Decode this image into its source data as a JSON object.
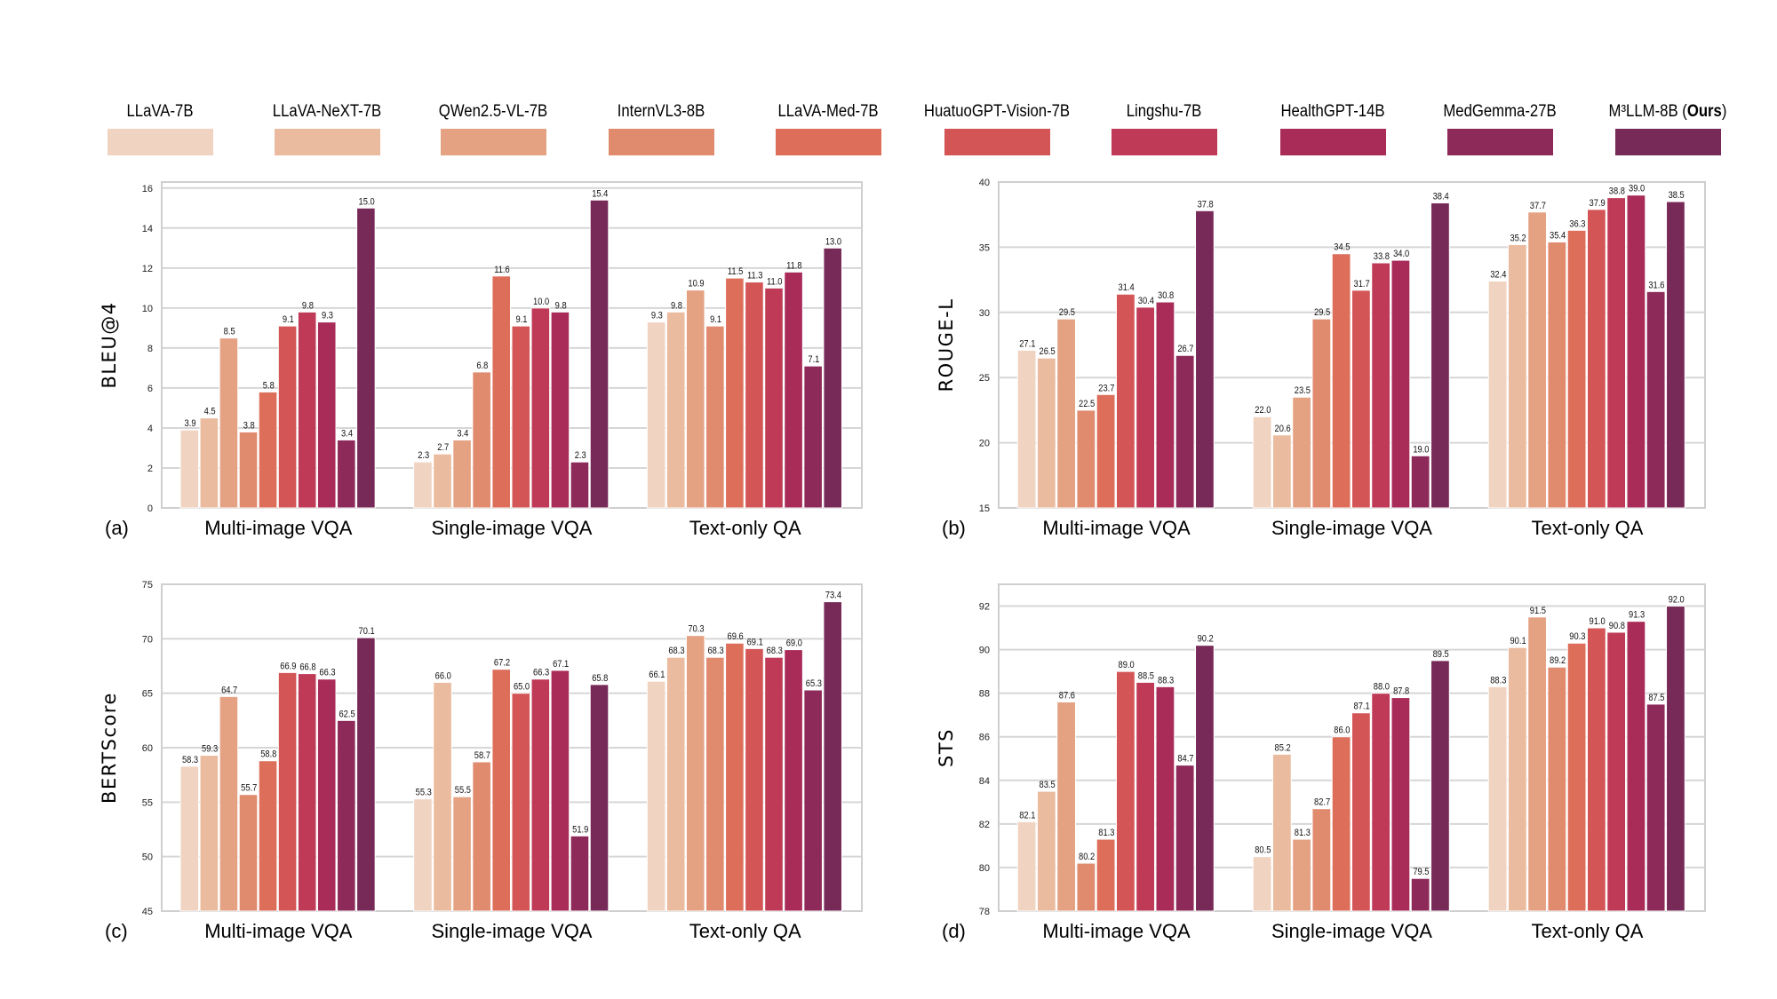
{
  "legend": {
    "models": [
      "LLaVA-7B",
      "LLaVA-NeXT-7B",
      "QWen2.5-VL-7B",
      "InternVL3-8B",
      "LLaVA-Med-7B",
      "HuatuoGPT-Vision-7B",
      "Lingshu-7B",
      "HealthGPT-14B",
      "MedGemma-27B",
      "M³LLM-8B (Ours)"
    ],
    "colors": [
      "#f0d3c0",
      "#eabb9e",
      "#e4a283",
      "#e08a6e",
      "#dc6e5a",
      "#d35556",
      "#bf3a56",
      "#a82b58",
      "#8d2a5a",
      "#772a57"
    ],
    "bold_part": "Ours"
  },
  "chart_data": [
    {
      "type": "bar",
      "panel_label": "(a)",
      "ylabel": "BLEU@4",
      "ylim": [
        0,
        16.3
      ],
      "yticks": [
        0,
        2,
        4,
        6,
        8,
        10,
        12,
        14,
        16
      ],
      "grid": true,
      "categories": [
        "Multi-image VQA",
        "Single-image VQA",
        "Text-only QA"
      ],
      "series": [
        {
          "name": "LLaVA-7B",
          "values": [
            3.9,
            2.3,
            9.3
          ]
        },
        {
          "name": "LLaVA-NeXT-7B",
          "values": [
            4.5,
            2.7,
            9.8
          ]
        },
        {
          "name": "QWen2.5-VL-7B",
          "values": [
            8.5,
            3.4,
            10.9
          ]
        },
        {
          "name": "InternVL3-8B",
          "values": [
            3.8,
            6.8,
            9.1
          ]
        },
        {
          "name": "LLaVA-Med-7B",
          "values": [
            5.8,
            11.6,
            11.5
          ]
        },
        {
          "name": "HuatuoGPT-Vision-7B",
          "values": [
            9.1,
            9.1,
            11.3
          ]
        },
        {
          "name": "Lingshu-7B",
          "values": [
            9.8,
            10.0,
            11.0
          ]
        },
        {
          "name": "HealthGPT-14B",
          "values": [
            9.3,
            9.8,
            11.8
          ]
        },
        {
          "name": "MedGemma-27B",
          "values": [
            3.4,
            2.3,
            7.1
          ]
        },
        {
          "name": "M³LLM-8B (Ours)",
          "values": [
            15.0,
            15.4,
            13.0
          ]
        }
      ]
    },
    {
      "type": "bar",
      "panel_label": "(b)",
      "ylabel": "ROUGE-L",
      "ylim": [
        15,
        40
      ],
      "yticks": [
        15,
        20,
        25,
        30,
        35,
        40
      ],
      "grid": true,
      "categories": [
        "Multi-image VQA",
        "Single-image VQA",
        "Text-only QA"
      ],
      "series": [
        {
          "name": "LLaVA-7B",
          "values": [
            27.1,
            22.0,
            32.4
          ]
        },
        {
          "name": "LLaVA-NeXT-7B",
          "values": [
            26.5,
            20.6,
            35.2
          ]
        },
        {
          "name": "QWen2.5-VL-7B",
          "values": [
            29.5,
            23.5,
            37.7
          ]
        },
        {
          "name": "InternVL3-8B",
          "values": [
            22.5,
            29.5,
            35.4
          ]
        },
        {
          "name": "LLaVA-Med-7B",
          "values": [
            23.7,
            34.5,
            36.3
          ]
        },
        {
          "name": "HuatuoGPT-Vision-7B",
          "values": [
            31.4,
            31.7,
            37.9
          ]
        },
        {
          "name": "Lingshu-7B",
          "values": [
            30.4,
            33.8,
            38.8
          ]
        },
        {
          "name": "HealthGPT-14B",
          "values": [
            30.8,
            34.0,
            39.0
          ]
        },
        {
          "name": "MedGemma-27B",
          "values": [
            26.7,
            19.0,
            31.6
          ]
        },
        {
          "name": "M³LLM-8B (Ours)",
          "values": [
            37.8,
            38.4,
            38.5
          ]
        }
      ]
    },
    {
      "type": "bar",
      "panel_label": "(c)",
      "ylabel": "BERTScore",
      "ylim": [
        45,
        75
      ],
      "yticks": [
        45,
        50,
        55,
        60,
        65,
        70,
        75
      ],
      "grid": true,
      "categories": [
        "Multi-image VQA",
        "Single-image VQA",
        "Text-only QA"
      ],
      "series": [
        {
          "name": "LLaVA-7B",
          "values": [
            58.3,
            55.3,
            66.1
          ]
        },
        {
          "name": "LLaVA-NeXT-7B",
          "values": [
            59.3,
            66.0,
            68.3
          ]
        },
        {
          "name": "QWen2.5-VL-7B",
          "values": [
            64.7,
            55.5,
            70.3
          ]
        },
        {
          "name": "InternVL3-8B",
          "values": [
            55.7,
            58.7,
            68.3
          ]
        },
        {
          "name": "LLaVA-Med-7B",
          "values": [
            58.8,
            67.2,
            69.6
          ]
        },
        {
          "name": "HuatuoGPT-Vision-7B",
          "values": [
            66.9,
            65.0,
            69.1
          ]
        },
        {
          "name": "Lingshu-7B",
          "values": [
            66.8,
            66.3,
            68.3
          ]
        },
        {
          "name": "HealthGPT-14B",
          "values": [
            66.3,
            67.1,
            69.0
          ]
        },
        {
          "name": "MedGemma-27B",
          "values": [
            62.5,
            51.9,
            65.3
          ]
        },
        {
          "name": "M³LLM-8B (Ours)",
          "values": [
            70.1,
            65.8,
            73.4
          ]
        }
      ]
    },
    {
      "type": "bar",
      "panel_label": "(d)",
      "ylabel": "STS",
      "ylim": [
        78,
        93
      ],
      "yticks": [
        78,
        80,
        82,
        84,
        86,
        88,
        90,
        92
      ],
      "grid": true,
      "categories": [
        "Multi-image VQA",
        "Single-image VQA",
        "Text-only QA"
      ],
      "series": [
        {
          "name": "LLaVA-7B",
          "values": [
            82.1,
            80.5,
            88.3
          ]
        },
        {
          "name": "LLaVA-NeXT-7B",
          "values": [
            83.5,
            85.2,
            90.1
          ]
        },
        {
          "name": "QWen2.5-VL-7B",
          "values": [
            87.6,
            81.3,
            91.5
          ]
        },
        {
          "name": "InternVL3-8B",
          "values": [
            80.2,
            82.7,
            89.2
          ]
        },
        {
          "name": "LLaVA-Med-7B",
          "values": [
            81.3,
            86.0,
            90.3
          ]
        },
        {
          "name": "HuatuoGPT-Vision-7B",
          "values": [
            89.0,
            87.1,
            91.0
          ]
        },
        {
          "name": "Lingshu-7B",
          "values": [
            88.5,
            88.0,
            90.8
          ]
        },
        {
          "name": "HealthGPT-14B",
          "values": [
            88.3,
            87.8,
            91.3
          ]
        },
        {
          "name": "MedGemma-27B",
          "values": [
            84.7,
            79.5,
            87.5
          ]
        },
        {
          "name": "M³LLM-8B (Ours)",
          "values": [
            90.2,
            89.5,
            92.0
          ]
        }
      ]
    }
  ]
}
